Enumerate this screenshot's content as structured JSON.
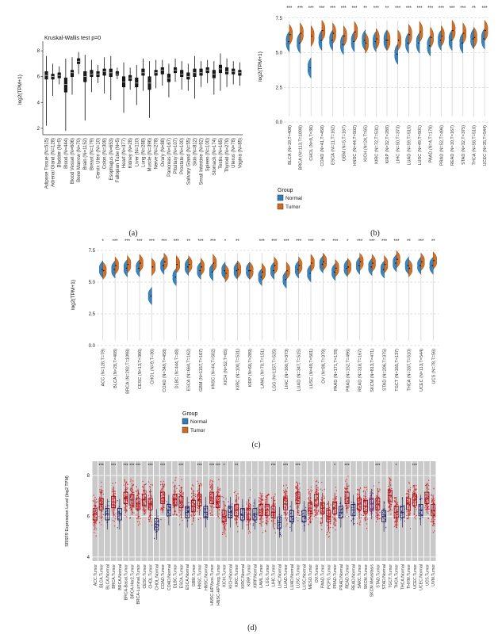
{
  "figure": {
    "captions": {
      "a": "(a)",
      "b": "(b)",
      "c": "(c)",
      "d": "(d)"
    }
  },
  "chart_data": [
    {
      "panel": "a",
      "type": "box",
      "title": "Kruskal-Wallis test p=0",
      "ylabel": "log2(TPM+1)",
      "ylim": [
        1.5,
        8.5
      ],
      "yticks": [
        2,
        4,
        6,
        8
      ],
      "box_color": "#1a1a1a",
      "categories": [
        "Adipose Tissue (N=515)",
        "Adrenal Gland (N=128)",
        "Bladder (N=9)",
        "Blood (N=444)",
        "Blood Vessel (N=606)",
        "Bone Marrow (N=70)",
        "Brain (N=1152)",
        "Breast (N=179)",
        "Cervix Uteri (N=10)",
        "Colon (N=308)",
        "Esophagus (N=653)",
        "Fallopian Tube (N=5)",
        "Heart (N=377)",
        "Kidney (N=28)",
        "Liver (N=110)",
        "Lung (N=288)",
        "Muscle (N=396)",
        "Nerve (N=278)",
        "Ovary (N=88)",
        "Pancreas (N=167)",
        "Pituitary (N=107)",
        "Prostate (N=100)",
        "Salivary Gland (N=55)",
        "Skin (N=812)",
        "Small Intestine (N=92)",
        "Spleen (N=100)",
        "Stomach (N=174)",
        "Testis (N=165)",
        "Thyroid (N=279)",
        "Uterus (N=78)",
        "Vagina (N=85)"
      ],
      "values": [
        [
          2.2,
          5.8,
          6.1,
          6.4,
          7.6
        ],
        [
          4.5,
          5.8,
          6.0,
          6.2,
          7.0
        ],
        [
          5.4,
          5.9,
          6.1,
          6.3,
          6.8
        ],
        [
          1.8,
          4.8,
          5.4,
          5.9,
          7.4
        ],
        [
          4.6,
          6.0,
          6.3,
          6.5,
          7.5
        ],
        [
          6.2,
          7.0,
          7.2,
          7.4,
          7.9
        ],
        [
          2.6,
          5.6,
          6.0,
          6.4,
          7.7
        ],
        [
          4.8,
          6.0,
          6.2,
          6.5,
          7.3
        ],
        [
          5.5,
          6.0,
          6.2,
          6.4,
          6.9
        ],
        [
          4.7,
          6.1,
          6.4,
          6.6,
          7.5
        ],
        [
          4.2,
          6.0,
          6.3,
          6.6,
          7.6
        ],
        [
          5.8,
          6.1,
          6.2,
          6.4,
          6.7
        ],
        [
          3.2,
          5.2,
          5.6,
          6.0,
          7.1
        ],
        [
          5.0,
          5.7,
          5.9,
          6.1,
          6.7
        ],
        [
          3.8,
          5.2,
          5.5,
          5.9,
          6.9
        ],
        [
          4.9,
          6.1,
          6.3,
          6.6,
          7.4
        ],
        [
          2.8,
          5.0,
          5.5,
          6.0,
          7.2
        ],
        [
          5.1,
          6.1,
          6.3,
          6.5,
          7.3
        ],
        [
          5.3,
          6.2,
          6.5,
          6.7,
          7.3
        ],
        [
          4.4,
          5.6,
          5.9,
          6.2,
          7.0
        ],
        [
          5.6,
          6.3,
          6.5,
          6.7,
          7.4
        ],
        [
          5.0,
          6.0,
          6.2,
          6.5,
          7.2
        ],
        [
          4.9,
          5.8,
          6.0,
          6.3,
          7.0
        ],
        [
          4.3,
          6.0,
          6.3,
          6.6,
          7.6
        ],
        [
          5.2,
          6.1,
          6.3,
          6.6,
          7.2
        ],
        [
          5.5,
          6.3,
          6.5,
          6.7,
          7.3
        ],
        [
          4.6,
          5.9,
          6.2,
          6.5,
          7.2
        ],
        [
          4.9,
          6.3,
          6.6,
          6.9,
          7.8
        ],
        [
          5.2,
          6.2,
          6.4,
          6.7,
          7.4
        ],
        [
          5.4,
          6.2,
          6.4,
          6.6,
          7.2
        ],
        [
          5.3,
          6.1,
          6.3,
          6.5,
          7.1
        ]
      ]
    },
    {
      "panel": "b",
      "type": "split-violin",
      "ylabel": "log2(TPM+1)",
      "ylim": [
        0,
        8
      ],
      "yticks": [
        0,
        2.5,
        5,
        7.5
      ],
      "ytick_labels": [
        "0.0",
        "2.5",
        "5.0",
        "7.5"
      ],
      "colors": {
        "normal": "#2e7ebc",
        "tumor": "#d2691e",
        "normal_dark": "#1c4e7a",
        "tumor_dark": "#7a3b00"
      },
      "legend": {
        "title": "Group",
        "items": [
          {
            "label": "Normal",
            "color": "#2e7ebc"
          },
          {
            "label": "Tumor",
            "color": "#d2691e"
          }
        ]
      },
      "categories": [
        "BLCA (N=19,T=408)",
        "BRCA (N=113,T=1098)",
        "CHOL (N=9,T=36)",
        "COAD (N=41,T=458)",
        "ESCA (N=11,T=162)",
        "GBM (N=5,T=167)",
        "HNSC (N=44,T=502)",
        "KICH (N=24,T=65)",
        "KIRC (N=72,T=531)",
        "KIRP (N=32,T=289)",
        "LIHC (N=50,T=373)",
        "LUAD (N=59,T=515)",
        "LUSC (N=49,T=501)",
        "PAAD (N=4,T=178)",
        "PRAD (N=52,T=496)",
        "READ (N=10,T=167)",
        "STAD (N=32,T=375)",
        "THCA (N=58,T=510)",
        "UCEC (N=35,T=544)"
      ],
      "normal": [
        5.8,
        5.7,
        3.9,
        5.9,
        5.9,
        5.6,
        5.8,
        5.9,
        5.8,
        5.9,
        4.9,
        5.7,
        5.7,
        5.5,
        5.9,
        5.9,
        5.7,
        6.0,
        6.0
      ],
      "tumor": [
        6.3,
        6.4,
        6.2,
        6.6,
        6.4,
        6.2,
        6.5,
        5.7,
        6.0,
        5.9,
        5.9,
        6.3,
        6.5,
        6.1,
        6.2,
        6.6,
        6.4,
        6.1,
        6.6
      ],
      "sig": [
        "***",
        "***",
        "***",
        "***",
        "***",
        "***",
        "***",
        "**",
        "***",
        "**",
        "***",
        "***",
        "***",
        "***",
        "***",
        "***",
        "***",
        "**",
        "***"
      ]
    },
    {
      "panel": "c",
      "type": "split-violin",
      "ylabel": "log2(TPM+1)",
      "ylim": [
        0,
        8
      ],
      "yticks": [
        0,
        2.5,
        5,
        7.5
      ],
      "ytick_labels": [
        "0.0",
        "2.5",
        "5.0",
        "7.5"
      ],
      "colors": {
        "normal": "#2e7ebc",
        "tumor": "#d2691e",
        "normal_dark": "#1c4e7a",
        "tumor_dark": "#7a3b00"
      },
      "legend": {
        "title": "Group",
        "items": [
          {
            "label": "Normal",
            "color": "#2e7ebc"
          },
          {
            "label": "Tumor",
            "color": "#d2691e"
          }
        ]
      },
      "categories": [
        "ACC (N=128,T=79)",
        "BLCA (N=28,T=408)",
        "BRCA (N=292,T=1098)",
        "CESC (N=13,T=306)",
        "CHOL (N=9,T=36)",
        "COAD (N=349,T=458)",
        "DLBC (N=444,T=48)",
        "ESCA (N=664,T=162)",
        "GBM (N=1157,T=167)",
        "HNSC (N=44,T=502)",
        "KICH (N=52,T=65)",
        "KIRC (N=100,T=531)",
        "KIRP (N=60,T=289)",
        "LAML (N=70,T=151)",
        "LGG (N=1157,T=525)",
        "LIHC (N=160,T=373)",
        "LUAD (N=347,T=515)",
        "LUSC (N=49,T=501)",
        "OV (N=88,T=379)",
        "PAAD (N=171,T=178)",
        "PRAD (N=152,T=496)",
        "READ (N=318,T=167)",
        "SKCM (N=813,T=471)",
        "STAD (N=206,T=375)",
        "TGCT (N=165,T=137)",
        "THCA (N=337,T=510)",
        "UCEC (N=113,T=544)",
        "UCS (N=78,T=56)"
      ],
      "normal": [
        6.0,
        6.0,
        6.1,
        6.1,
        3.9,
        6.3,
        5.4,
        6.2,
        5.9,
        5.8,
        5.9,
        5.9,
        5.9,
        5.4,
        5.9,
        5.2,
        6.0,
        5.7,
        6.4,
        5.8,
        6.1,
        6.3,
        6.2,
        6.0,
        6.5,
        6.3,
        6.3,
        6.3
      ],
      "tumor": [
        5.9,
        6.3,
        6.4,
        6.5,
        6.2,
        6.6,
        6.4,
        6.4,
        6.2,
        6.5,
        5.7,
        6.0,
        5.9,
        5.8,
        6.3,
        5.9,
        6.3,
        6.5,
        6.6,
        6.1,
        6.2,
        6.6,
        6.5,
        6.4,
        6.8,
        6.1,
        6.6,
        6.7
      ],
      "sig": [
        "*",
        "***",
        "***",
        "***",
        "***",
        "***",
        "***",
        "**",
        "***",
        "***",
        "*",
        "**",
        "",
        "***",
        "***",
        "***",
        "***",
        "***",
        "**",
        "***",
        "*",
        "***",
        "***",
        "***",
        "***",
        "**",
        "***",
        "**"
      ]
    },
    {
      "panel": "d",
      "type": "jitter-box",
      "ylabel": "SRSF9 Expression Level (log2 TPM)",
      "ylim": [
        3.8,
        8.7
      ],
      "yticks": [
        4,
        6,
        8
      ],
      "plot_bg": "#c9c9c9",
      "groups": {
        "Tumor": {
          "color": "#e31a1c",
          "dark": "#99000d",
          "n": 55,
          "spread": 0.55
        },
        "Normal": {
          "color": "#24248f",
          "dark": "#12124d",
          "n": 18,
          "spread": 0.35
        },
        "Metastasis": {
          "color": "#8b2a8b",
          "dark": "#551155",
          "n": 40,
          "spread": 0.5
        }
      },
      "columns": [
        {
          "label": "ACC.Tumor",
          "group": "Tumor",
          "median": 6.1,
          "sig": ""
        },
        {
          "label": "BLCA.Tumor",
          "group": "Tumor",
          "median": 6.6,
          "sig": "***"
        },
        {
          "label": "BLCA.Normal",
          "group": "Normal",
          "median": 6.1,
          "sig": ""
        },
        {
          "label": "BRCA.Tumor",
          "group": "Tumor",
          "median": 6.7,
          "sig": "***"
        },
        {
          "label": "BRCA.Normal",
          "group": "Normal",
          "median": 6.1,
          "sig": ""
        },
        {
          "label": "BRCA-Basal.Tumor",
          "group": "Tumor",
          "median": 6.9,
          "sig": "***"
        },
        {
          "label": "BRCA-Her2.Tumor",
          "group": "Tumor",
          "median": 6.8,
          "sig": "***"
        },
        {
          "label": "BRCA-Luminal.Tumor",
          "group": "Tumor",
          "median": 6.6,
          "sig": "***"
        },
        {
          "label": "CESC.Tumor",
          "group": "Tumor",
          "median": 6.8,
          "sig": ""
        },
        {
          "label": "CHOL.Tumor",
          "group": "Tumor",
          "median": 6.6,
          "sig": "***"
        },
        {
          "label": "CHOL.Normal",
          "group": "Normal",
          "median": 5.6,
          "sig": ""
        },
        {
          "label": "COAD.Tumor",
          "group": "Tumor",
          "median": 6.9,
          "sig": "***"
        },
        {
          "label": "COAD.Normal",
          "group": "Normal",
          "median": 6.3,
          "sig": ""
        },
        {
          "label": "DLBC.Tumor",
          "group": "Tumor",
          "median": 6.8,
          "sig": ""
        },
        {
          "label": "ESCA.Tumor",
          "group": "Tumor",
          "median": 6.7,
          "sig": "***"
        },
        {
          "label": "ESCA.Normal",
          "group": "Normal",
          "median": 6.2,
          "sig": ""
        },
        {
          "label": "GBM.Tumor",
          "group": "Tumor",
          "median": 6.5,
          "sig": ""
        },
        {
          "label": "HNSC.Tumor",
          "group": "Tumor",
          "median": 6.8,
          "sig": "***"
        },
        {
          "label": "HNSC.Normal",
          "group": "Normal",
          "median": 6.2,
          "sig": ""
        },
        {
          "label": "HNSC-HPVpos.Tumor",
          "group": "Tumor",
          "median": 6.9,
          "sig": "***"
        },
        {
          "label": "HNSC-HPVneg.Tumor",
          "group": "Tumor",
          "median": 6.7,
          "sig": "***"
        },
        {
          "label": "KICH.Tumor",
          "group": "Tumor",
          "median": 6.0,
          "sig": "*"
        },
        {
          "label": "KICH.Normal",
          "group": "Normal",
          "median": 6.2,
          "sig": ""
        },
        {
          "label": "KIRC.Tumor",
          "group": "Tumor",
          "median": 6.3,
          "sig": "**"
        },
        {
          "label": "KIRC.Normal",
          "group": "Normal",
          "median": 6.1,
          "sig": ""
        },
        {
          "label": "KIRP.Tumor",
          "group": "Tumor",
          "median": 6.1,
          "sig": ""
        },
        {
          "label": "KIRP.Normal",
          "group": "Normal",
          "median": 6.1,
          "sig": ""
        },
        {
          "label": "LAML.Tumor",
          "group": "Tumor",
          "median": 6.3,
          "sig": ""
        },
        {
          "label": "LGG.Tumor",
          "group": "Tumor",
          "median": 6.3,
          "sig": ""
        },
        {
          "label": "LIHC.Tumor",
          "group": "Tumor",
          "median": 6.2,
          "sig": "***"
        },
        {
          "label": "LIHC.Normal",
          "group": "Normal",
          "median": 5.7,
          "sig": ""
        },
        {
          "label": "LUAD.Tumor",
          "group": "Tumor",
          "median": 6.6,
          "sig": "***"
        },
        {
          "label": "LUAD.Normal",
          "group": "Normal",
          "median": 6.0,
          "sig": ""
        },
        {
          "label": "LUSC.Tumor",
          "group": "Tumor",
          "median": 6.9,
          "sig": "***"
        },
        {
          "label": "LUSC.Normal",
          "group": "Normal",
          "median": 6.0,
          "sig": ""
        },
        {
          "label": "MESO.Tumor",
          "group": "Tumor",
          "median": 6.4,
          "sig": ""
        },
        {
          "label": "OV.Tumor",
          "group": "Tumor",
          "median": 6.8,
          "sig": ""
        },
        {
          "label": "PAAD.Tumor",
          "group": "Tumor",
          "median": 6.4,
          "sig": ""
        },
        {
          "label": "PCPG.Tumor",
          "group": "Tumor",
          "median": 6.0,
          "sig": ""
        },
        {
          "label": "PRAD.Tumor",
          "group": "Tumor",
          "median": 6.4,
          "sig": "*"
        },
        {
          "label": "PRAD.Normal",
          "group": "Normal",
          "median": 6.2,
          "sig": ""
        },
        {
          "label": "READ.Tumor",
          "group": "Tumor",
          "median": 6.9,
          "sig": "***"
        },
        {
          "label": "READ.Normal",
          "group": "Normal",
          "median": 6.3,
          "sig": ""
        },
        {
          "label": "SARC.Tumor",
          "group": "Tumor",
          "median": 6.6,
          "sig": ""
        },
        {
          "label": "SKCM.Tumor",
          "group": "Tumor",
          "median": 6.5,
          "sig": ""
        },
        {
          "label": "SKCM.Metastasis",
          "group": "Metastasis",
          "median": 6.6,
          "sig": ""
        },
        {
          "label": "STAD.Tumor",
          "group": "Tumor",
          "median": 6.6,
          "sig": "***"
        },
        {
          "label": "STAD.Normal",
          "group": "Normal",
          "median": 6.0,
          "sig": ""
        },
        {
          "label": "TGCT.Tumor",
          "group": "Tumor",
          "median": 7.0,
          "sig": ""
        },
        {
          "label": "THCA.Tumor",
          "group": "Tumor",
          "median": 6.2,
          "sig": "*"
        },
        {
          "label": "THCA.Normal",
          "group": "Normal",
          "median": 6.2,
          "sig": ""
        },
        {
          "label": "THYM.Tumor",
          "group": "Tumor",
          "median": 6.6,
          "sig": ""
        },
        {
          "label": "UCEC.Tumor",
          "group": "Tumor",
          "median": 6.8,
          "sig": "***"
        },
        {
          "label": "UCEC.Normal",
          "group": "Normal",
          "median": 6.3,
          "sig": ""
        },
        {
          "label": "UCS.Tumor",
          "group": "Tumor",
          "median": 6.9,
          "sig": ""
        },
        {
          "label": "UVM.Tumor",
          "group": "Tumor",
          "median": 6.3,
          "sig": ""
        }
      ]
    }
  ]
}
